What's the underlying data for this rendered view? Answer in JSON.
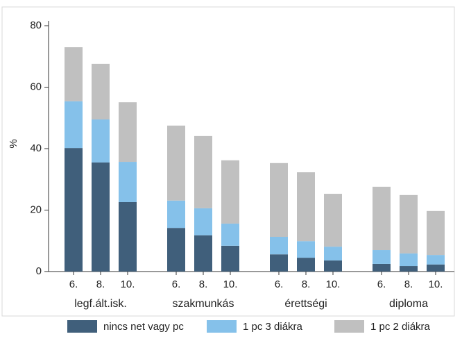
{
  "chart_data": {
    "type": "stacked_bar",
    "ylabel": "%",
    "groups": [
      "legf.ált.isk.",
      "szakmunkás",
      "érettségi",
      "diploma"
    ],
    "categories": [
      "6.",
      "8.",
      "10.",
      "6.",
      "8.",
      "10.",
      "6.",
      "8.",
      "10.",
      "6.",
      "8.",
      "10."
    ],
    "series": [
      {
        "name": "nincs net vagy pc",
        "color": "#405f7b",
        "values": [
          40.2,
          35.5,
          22.6,
          14.2,
          11.8,
          8.4,
          5.6,
          4.5,
          3.6,
          2.5,
          1.8,
          2.3
        ]
      },
      {
        "name": "1 pc 3 diákra",
        "color": "#85c1ea",
        "values": [
          15.2,
          14.0,
          13.1,
          8.9,
          8.8,
          7.2,
          5.7,
          5.4,
          4.5,
          4.5,
          4.1,
          3.1
        ]
      },
      {
        "name": "1 pc 2 diákra",
        "color": "#c0c0c0",
        "values": [
          17.6,
          18.1,
          19.4,
          24.4,
          23.5,
          20.6,
          24.0,
          22.4,
          17.2,
          20.6,
          19.0,
          14.3
        ]
      }
    ],
    "ylim": [
      0,
      80
    ],
    "yticks": [
      0,
      20,
      40,
      60,
      80
    ],
    "legend": "bottom"
  }
}
